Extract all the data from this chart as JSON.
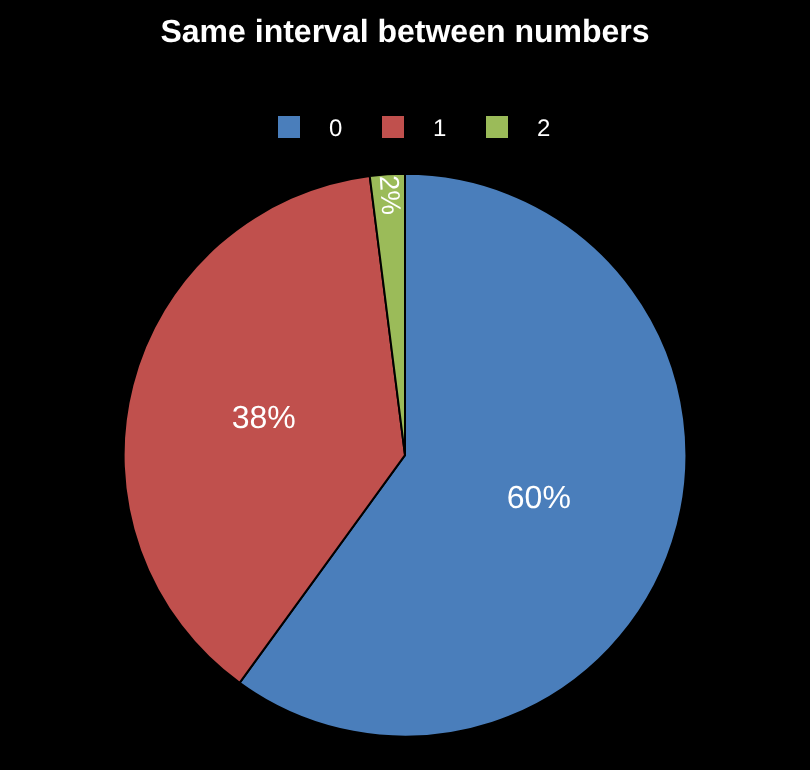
{
  "chart_data": {
    "type": "pie",
    "title": "Same interval between numbers",
    "categories": [
      "0",
      "1",
      "2"
    ],
    "values": [
      60,
      38,
      2
    ],
    "colors": [
      "#4a7ebb",
      "#c0504d",
      "#9bbb59"
    ],
    "value_labels": [
      "60%",
      "38%",
      "2%"
    ],
    "legend": "top"
  }
}
